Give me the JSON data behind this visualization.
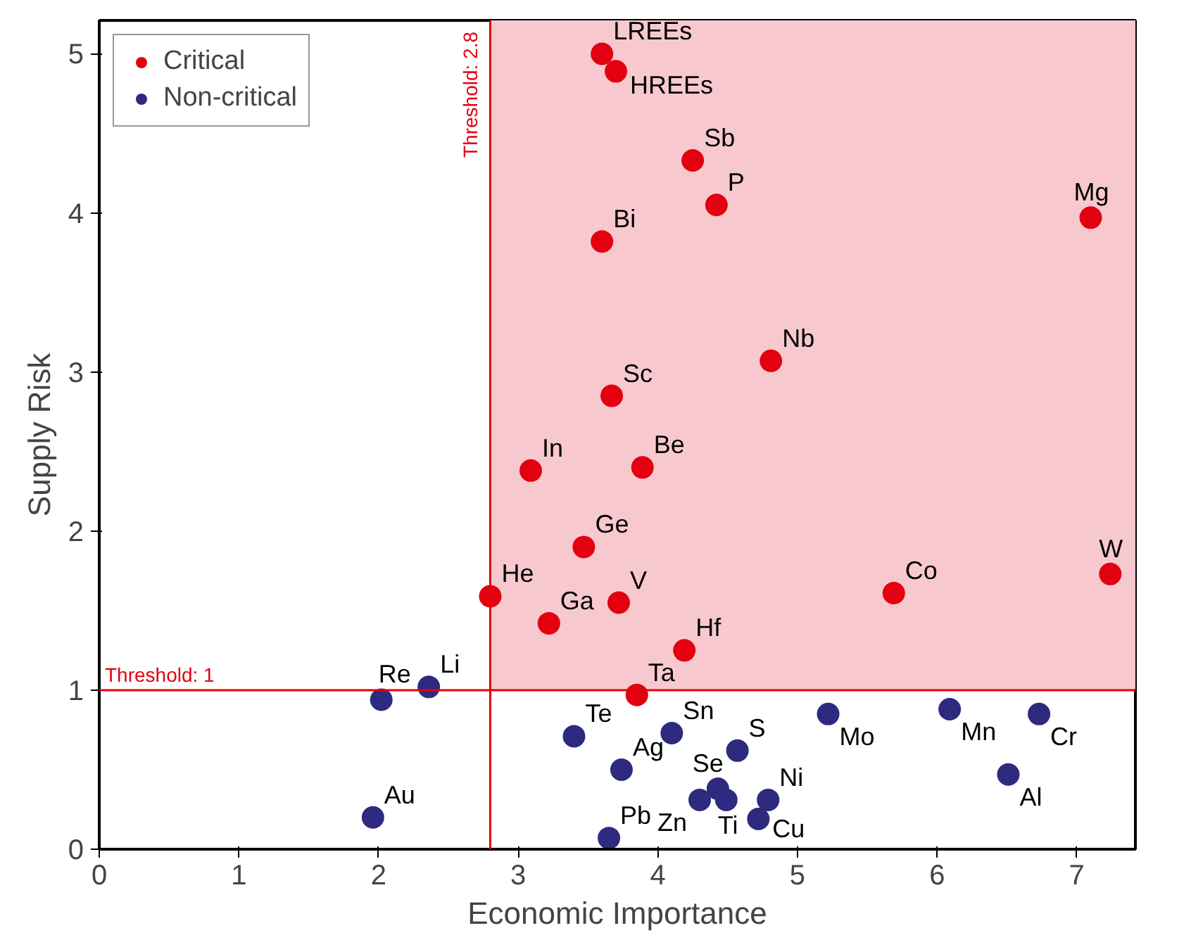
{
  "chart_data": {
    "type": "scatter",
    "xlabel": "Economic Importance",
    "ylabel": "Supply Risk",
    "xlim": [
      0,
      7.42
    ],
    "ylim": [
      0,
      5.21
    ],
    "xticks": [
      0,
      1,
      2,
      3,
      4,
      5,
      6,
      7
    ],
    "yticks": [
      0,
      1,
      2,
      3,
      4,
      5
    ],
    "grid": false,
    "legend": "top left",
    "marker": "circle",
    "series": [
      {
        "name": "Critical",
        "color": "#e3000f",
        "x": [
          3.6,
          3.7,
          4.25,
          4.42,
          3.6,
          7.1,
          4.81,
          3.67,
          3.09,
          3.89,
          3.47,
          2.8,
          3.22,
          3.72,
          5.69,
          7.24,
          4.19,
          3.85
        ],
        "values": [
          5.0,
          4.89,
          4.33,
          4.05,
          3.82,
          3.97,
          3.07,
          2.85,
          2.38,
          2.4,
          1.9,
          1.59,
          1.42,
          1.55,
          1.61,
          1.73,
          1.25,
          0.97
        ]
      },
      {
        "name": "Non-critical",
        "color": "#2e2a7f",
        "x": [
          2.02,
          2.36,
          1.96,
          3.4,
          3.74,
          3.65,
          4.1,
          4.57,
          4.43,
          4.3,
          4.49,
          4.79,
          4.72,
          5.22,
          6.09,
          6.73,
          6.51
        ],
        "values": [
          0.94,
          1.02,
          0.2,
          0.71,
          0.5,
          0.07,
          0.73,
          0.62,
          0.38,
          0.31,
          0.31,
          0.31,
          0.19,
          0.85,
          0.88,
          0.85,
          0.47
        ]
      }
    ],
    "ref_lines": [
      {
        "axis": "x",
        "value": 2.8,
        "label": "Threshold: 2.8",
        "color": "#e3000f"
      },
      {
        "axis": "y",
        "value": 1,
        "label": "Threshold: 1",
        "color": "#e3000f"
      }
    ],
    "bands": [
      {
        "axis": "x",
        "from": 2.8,
        "to": 7.42,
        "color": "#f7c9cf"
      }
    ],
    "annotations": [
      {
        "text": "LREEs",
        "x": 3.6,
        "y": 5.0
      },
      {
        "text": "HREEs",
        "x": 3.7,
        "y": 4.89
      },
      {
        "text": "Sb",
        "x": 4.25,
        "y": 4.33
      },
      {
        "text": "P",
        "x": 4.42,
        "y": 4.05
      },
      {
        "text": "Bi",
        "x": 3.6,
        "y": 3.82
      },
      {
        "text": "Mg",
        "x": 7.1,
        "y": 3.97
      },
      {
        "text": "Nb",
        "x": 4.81,
        "y": 3.07
      },
      {
        "text": "Sc",
        "x": 3.67,
        "y": 2.85
      },
      {
        "text": "In",
        "x": 3.09,
        "y": 2.38
      },
      {
        "text": "Be",
        "x": 3.89,
        "y": 2.4
      },
      {
        "text": "Ge",
        "x": 3.47,
        "y": 1.9
      },
      {
        "text": "He",
        "x": 2.8,
        "y": 1.59
      },
      {
        "text": "Ga",
        "x": 3.22,
        "y": 1.42
      },
      {
        "text": "V",
        "x": 3.72,
        "y": 1.55
      },
      {
        "text": "Co",
        "x": 5.69,
        "y": 1.61
      },
      {
        "text": "W",
        "x": 7.24,
        "y": 1.73
      },
      {
        "text": "Hf",
        "x": 4.19,
        "y": 1.25
      },
      {
        "text": "Ta",
        "x": 3.85,
        "y": 0.97
      },
      {
        "text": "Re",
        "x": 2.02,
        "y": 0.94
      },
      {
        "text": "Li",
        "x": 2.36,
        "y": 1.02
      },
      {
        "text": "Au",
        "x": 1.96,
        "y": 0.2
      },
      {
        "text": "Te",
        "x": 3.4,
        "y": 0.71
      },
      {
        "text": "Ag",
        "x": 3.74,
        "y": 0.5
      },
      {
        "text": "Pb",
        "x": 3.65,
        "y": 0.07
      },
      {
        "text": "Sn",
        "x": 4.1,
        "y": 0.73
      },
      {
        "text": "S",
        "x": 4.57,
        "y": 0.62
      },
      {
        "text": "Se",
        "x": 4.43,
        "y": 0.38
      },
      {
        "text": "Zn",
        "x": 4.3,
        "y": 0.31
      },
      {
        "text": "Ti",
        "x": 4.49,
        "y": 0.31
      },
      {
        "text": "Ni",
        "x": 4.79,
        "y": 0.31
      },
      {
        "text": "Cu",
        "x": 4.72,
        "y": 0.19
      },
      {
        "text": "Mo",
        "x": 5.22,
        "y": 0.85
      },
      {
        "text": "Mn",
        "x": 6.09,
        "y": 0.88
      },
      {
        "text": "Cr",
        "x": 6.73,
        "y": 0.85
      },
      {
        "text": "Al",
        "x": 6.51,
        "y": 0.47
      }
    ]
  }
}
